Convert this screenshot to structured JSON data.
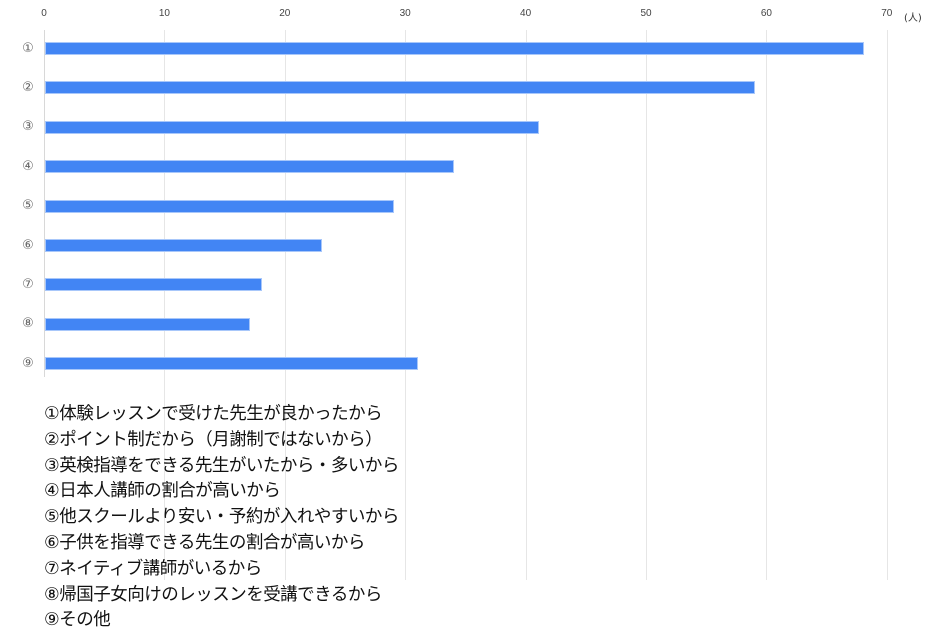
{
  "chart_data": {
    "type": "bar",
    "orientation": "horizontal",
    "title": "",
    "xlabel": "",
    "ylabel": "",
    "unit": "(人)",
    "xlim": [
      0,
      70
    ],
    "x_ticks": [
      0,
      10,
      20,
      30,
      40,
      50,
      60,
      70
    ],
    "grid": true,
    "categories": [
      "①",
      "②",
      "③",
      "④",
      "⑤",
      "⑥",
      "⑦",
      "⑧",
      "⑨"
    ],
    "values": [
      68,
      59,
      41,
      34,
      29,
      23,
      18,
      17,
      31
    ],
    "bar_color": "#4285f4",
    "legend": [
      "①体験レッスンで受けた先生が良かったから",
      "②ポイント制だから（月謝制ではないから）",
      "③英検指導をできる先生がいたから・多いから",
      "④日本人講師の割合が高いから",
      "⑤他スクールより安い・予約が入れやすいから",
      "⑥子供を指導できる先生の割合が高いから",
      "⑦ネイティブ講師がいるから",
      "⑧帰国子女向けのレッスンを受講できるから",
      "⑨その他"
    ],
    "legend_position": "bottom"
  }
}
